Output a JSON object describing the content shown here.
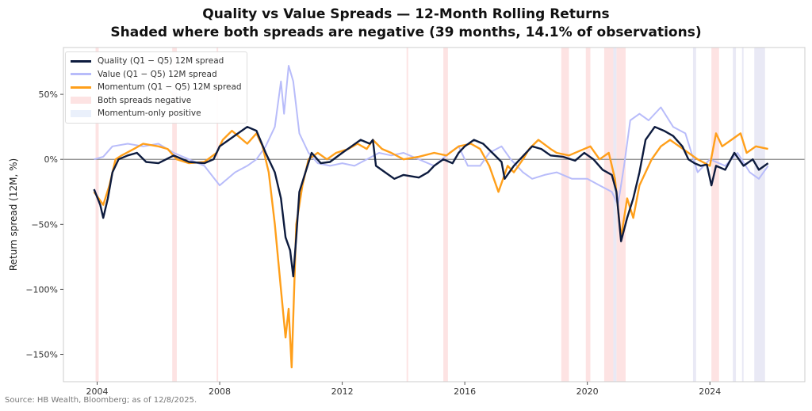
{
  "title": "Quality vs Value Spreads — 12-Month Rolling Returns",
  "subtitle": "Shaded where both spreads are negative (39 months, 14.1% of observations)",
  "source": "Source: HB Wealth, Bloomberg; as of 12/8/2025.",
  "chart_data": {
    "type": "line",
    "title": "Quality vs Value Spreads — 12-Month Rolling Returns",
    "subtitle": "Shaded where both spreads are negative (39 months, 14.1% of observations)",
    "xlabel": "",
    "ylabel": "Return spread (12M, %)",
    "xlim": [
      2002.9,
      2027.1
    ],
    "ylim": [
      -171,
      86
    ],
    "x_ticks": [
      2004,
      2008,
      2012,
      2016,
      2020,
      2024
    ],
    "x_tick_labels": [
      "2004",
      "2008",
      "2012",
      "2016",
      "2020",
      "2024"
    ],
    "y_ticks": [
      -150,
      -100,
      -50,
      0,
      50
    ],
    "y_tick_labels": [
      "−150%",
      "−100%",
      "−50%",
      "0%",
      "50%"
    ],
    "grid": false,
    "zero_line": true,
    "legend_position": "top-left",
    "series": [
      {
        "name": "Quality (Q1 − Q5) 12M spread",
        "color": "#0d1b3e",
        "x": [
          2003.9,
          2004.1,
          2004.2,
          2004.35,
          2004.5,
          2004.7,
          2005,
          2005.3,
          2005.6,
          2006,
          2006.5,
          2007,
          2007.5,
          2007.8,
          2008,
          2008.3,
          2008.6,
          2008.9,
          2009.2,
          2009.5,
          2009.8,
          2010,
          2010.15,
          2010.3,
          2010.4,
          2010.5,
          2010.6,
          2010.8,
          2011,
          2011.3,
          2011.6,
          2012,
          2012.3,
          2012.6,
          2012.9,
          2013,
          2013.1,
          2013.4,
          2013.7,
          2014,
          2014.5,
          2014.8,
          2015,
          2015.3,
          2015.6,
          2015.8,
          2016,
          2016.3,
          2016.6,
          2016.9,
          2017.2,
          2017.3,
          2017.6,
          2017.8,
          2018.2,
          2018.5,
          2018.8,
          2019.2,
          2019.6,
          2019.9,
          2020.2,
          2020.5,
          2020.8,
          2020.95,
          2021.1,
          2021.3,
          2021.5,
          2021.7,
          2021.9,
          2022.2,
          2022.5,
          2022.8,
          2023.1,
          2023.3,
          2023.5,
          2023.7,
          2023.9,
          2024.05,
          2024.2,
          2024.5,
          2024.8,
          2025.1,
          2025.4,
          2025.6,
          2025.9
        ],
        "y": [
          -23,
          -35,
          -45,
          -30,
          -10,
          0,
          3,
          5,
          -2,
          -3,
          3,
          -2,
          -3,
          0,
          10,
          15,
          20,
          25,
          22,
          5,
          -10,
          -30,
          -60,
          -70,
          -90,
          -60,
          -25,
          -10,
          5,
          -3,
          -2,
          5,
          10,
          15,
          12,
          15,
          -5,
          -10,
          -15,
          -12,
          -14,
          -10,
          -5,
          0,
          -3,
          5,
          10,
          15,
          12,
          5,
          -2,
          -15,
          -5,
          0,
          10,
          8,
          3,
          2,
          -1,
          5,
          0,
          -8,
          -12,
          -25,
          -63,
          -45,
          -30,
          -10,
          15,
          25,
          22,
          18,
          10,
          0,
          -3,
          -5,
          -4,
          -20,
          -5,
          -8,
          5,
          -5,
          0,
          -8,
          -3
        ]
      },
      {
        "name": "Value (Q1 − Q5) 12M spread",
        "color": "#b8bcfa",
        "x": [
          2003.9,
          2004.2,
          2004.5,
          2005,
          2005.5,
          2006,
          2006.5,
          2007,
          2007.5,
          2008,
          2008.5,
          2008.9,
          2009.2,
          2009.5,
          2009.8,
          2010,
          2010.1,
          2010.25,
          2010.4,
          2010.6,
          2010.9,
          2011.2,
          2011.6,
          2012,
          2012.4,
          2012.8,
          2013.2,
          2013.6,
          2014,
          2014.5,
          2015,
          2015.5,
          2015.8,
          2016.1,
          2016.5,
          2016.8,
          2017.2,
          2017.5,
          2017.9,
          2018.2,
          2018.6,
          2019,
          2019.5,
          2020,
          2020.4,
          2020.8,
          2021,
          2021.2,
          2021.4,
          2021.7,
          2022,
          2022.4,
          2022.8,
          2023.2,
          2023.4,
          2023.6,
          2024,
          2024.5,
          2024.9,
          2025.3,
          2025.6,
          2025.9
        ],
        "y": [
          0,
          2,
          10,
          12,
          10,
          12,
          5,
          0,
          -5,
          -20,
          -10,
          -5,
          0,
          10,
          25,
          60,
          35,
          72,
          60,
          20,
          5,
          -3,
          -5,
          -3,
          -5,
          0,
          5,
          3,
          5,
          0,
          -5,
          5,
          10,
          -5,
          -5,
          5,
          10,
          0,
          -10,
          -15,
          -12,
          -10,
          -15,
          -15,
          -20,
          -25,
          -35,
          -5,
          30,
          35,
          30,
          40,
          25,
          20,
          5,
          -10,
          0,
          -5,
          5,
          -10,
          -15,
          -5
        ]
      },
      {
        "name": "Momentum (Q1 − Q5) 12M spread",
        "color": "#ff9f1a",
        "x": [
          2003.9,
          2004.2,
          2004.4,
          2004.6,
          2004.8,
          2005.2,
          2005.5,
          2006,
          2006.3,
          2006.6,
          2007,
          2007.5,
          2007.9,
          2008.1,
          2008.4,
          2008.6,
          2008.9,
          2009.2,
          2009.4,
          2009.6,
          2009.8,
          2010,
          2010.15,
          2010.25,
          2010.35,
          2010.5,
          2010.7,
          2010.9,
          2011.2,
          2011.5,
          2011.8,
          2012.2,
          2012.5,
          2012.8,
          2013,
          2013.3,
          2013.6,
          2014,
          2014.5,
          2015,
          2015.4,
          2015.8,
          2016.2,
          2016.5,
          2016.8,
          2017.1,
          2017.4,
          2017.6,
          2017.9,
          2018.1,
          2018.4,
          2018.8,
          2019,
          2019.4,
          2019.8,
          2020.1,
          2020.4,
          2020.7,
          2020.9,
          2021.1,
          2021.3,
          2021.5,
          2021.7,
          2021.9,
          2022.1,
          2022.4,
          2022.7,
          2023,
          2023.3,
          2023.6,
          2024,
          2024.2,
          2024.4,
          2024.7,
          2025,
          2025.2,
          2025.5,
          2025.9
        ],
        "y": [
          -25,
          -35,
          -20,
          0,
          3,
          8,
          12,
          10,
          8,
          0,
          -3,
          -2,
          5,
          15,
          22,
          18,
          12,
          20,
          10,
          -10,
          -50,
          -100,
          -137,
          -115,
          -160,
          -50,
          -20,
          0,
          5,
          0,
          5,
          8,
          12,
          8,
          15,
          8,
          5,
          0,
          2,
          5,
          3,
          10,
          12,
          8,
          -5,
          -25,
          -5,
          -10,
          0,
          8,
          15,
          8,
          5,
          3,
          7,
          10,
          0,
          5,
          -15,
          -60,
          -30,
          -45,
          -20,
          -10,
          0,
          10,
          15,
          10,
          5,
          0,
          -5,
          20,
          10,
          15,
          20,
          5,
          10,
          8
        ]
      }
    ],
    "shaded_regions": {
      "both_negative": {
        "label": "Both spreads negative",
        "color": "#fde3e3",
        "spans": [
          [
            2003.95,
            2004.05
          ],
          [
            2006.45,
            2006.6
          ],
          [
            2007.9,
            2007.95
          ],
          [
            2014.1,
            2014.15
          ],
          [
            2015.3,
            2015.45
          ],
          [
            2019.15,
            2019.4
          ],
          [
            2019.95,
            2020.1
          ],
          [
            2020.55,
            2020.85
          ],
          [
            2020.95,
            2021.25
          ],
          [
            2024.05,
            2024.3
          ]
        ]
      },
      "momentum_only_positive": {
        "label": "Momentum-only positive",
        "color": "#e9e9f5",
        "spans": [
          [
            2020.85,
            2020.95
          ],
          [
            2023.45,
            2023.55
          ],
          [
            2024.75,
            2024.85
          ],
          [
            2025.05,
            2025.1
          ],
          [
            2025.45,
            2025.8
          ]
        ]
      }
    }
  }
}
